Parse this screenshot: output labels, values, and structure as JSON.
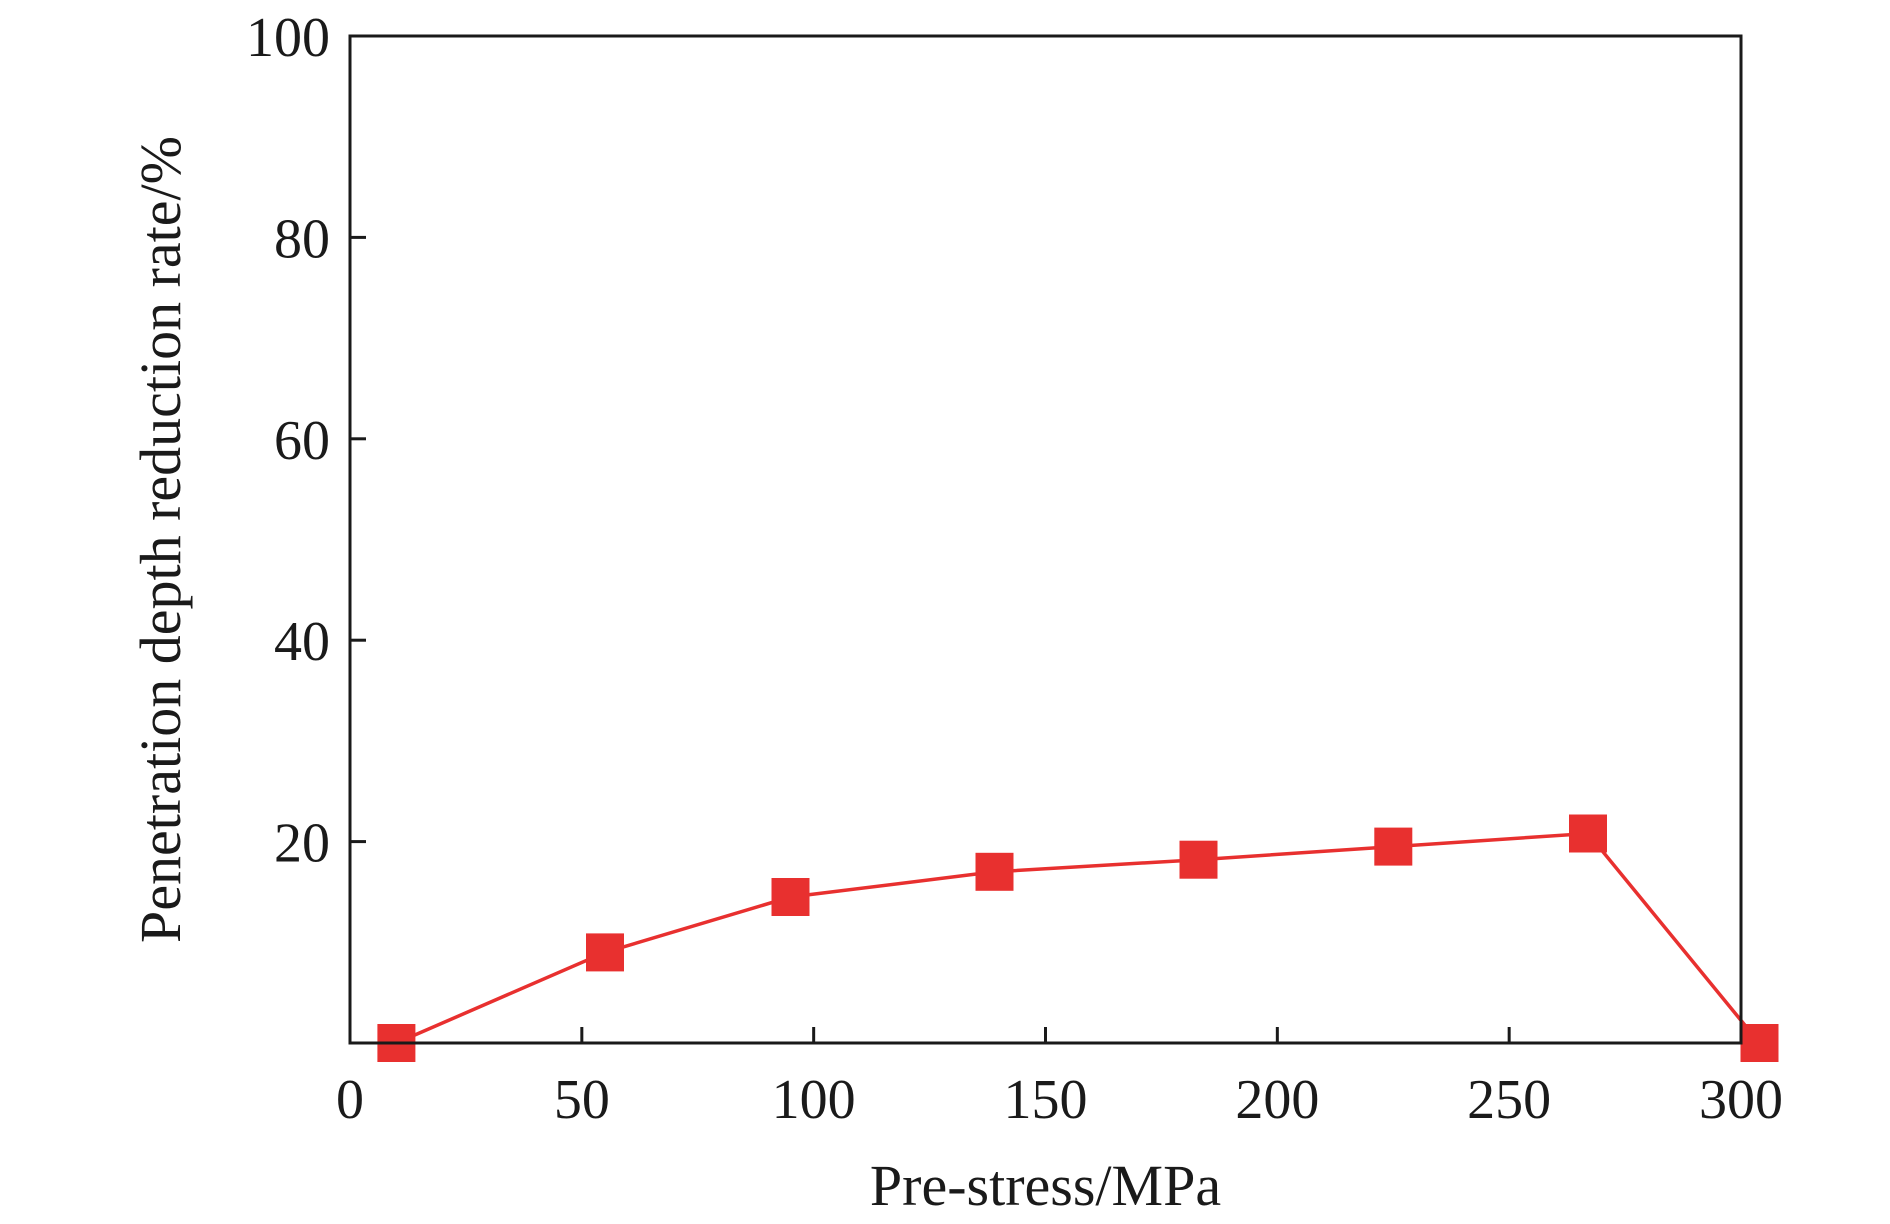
{
  "chart_data": {
    "type": "line",
    "xlabel": "Pre-stress/MPa",
    "ylabel": "Penetration depth reduction rate/%",
    "xlim": [
      0,
      300
    ],
    "ylim": [
      0,
      100
    ],
    "x_ticks": [
      0,
      50,
      100,
      150,
      200,
      250,
      300
    ],
    "y_ticks": [
      20,
      40,
      60,
      80,
      100
    ],
    "grid": false,
    "legend": "none",
    "series": [
      {
        "color": "#e8302f",
        "marker": "square",
        "x": [
          10,
          55,
          95,
          139,
          183,
          225,
          267,
          304
        ],
        "y": [
          0,
          9,
          14.5,
          17,
          18.2,
          19.5,
          20.8,
          0
        ]
      }
    ]
  }
}
